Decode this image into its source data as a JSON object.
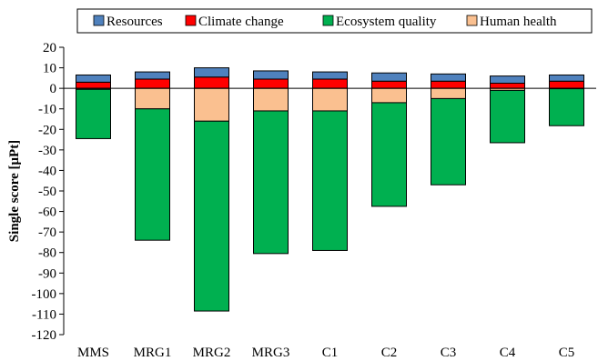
{
  "chart_data": {
    "type": "bar",
    "stacked": true,
    "ylabel": "Single score [μPt]",
    "xlabel": "",
    "ylim": [
      -120,
      20
    ],
    "ytick_step": 10,
    "grid": false,
    "legend_position": "top",
    "categories": [
      "MMS",
      "MRG1",
      "MRG2",
      "MRG3",
      "C1",
      "C2",
      "C3",
      "C4",
      "C5"
    ],
    "series": [
      {
        "name": "Resources",
        "color": "#4f81bd",
        "stack": "positive",
        "values": [
          3.5,
          3.5,
          4.5,
          4,
          3.5,
          4,
          3.5,
          3.5,
          3
        ]
      },
      {
        "name": "Climate change",
        "color": "#ff0000",
        "stack": "positive",
        "values": [
          3,
          4.5,
          5.5,
          4.5,
          4.5,
          3.5,
          3.5,
          2.5,
          3.5
        ]
      },
      {
        "name": "Ecosystem quality",
        "color": "#00b050",
        "stack": "negative",
        "values": [
          -24,
          -64,
          -92.5,
          -69.5,
          -68,
          -50.5,
          -42,
          -25.5,
          -18
        ]
      },
      {
        "name": "Human health",
        "color": "#fac090",
        "stack": "negative",
        "values": [
          -0.5,
          -10,
          -16,
          -11,
          -11,
          -7,
          -5,
          -1,
          -0.2
        ]
      }
    ],
    "legend_order": [
      "Resources",
      "Climate change",
      "Ecosystem quality",
      "Human health"
    ]
  }
}
